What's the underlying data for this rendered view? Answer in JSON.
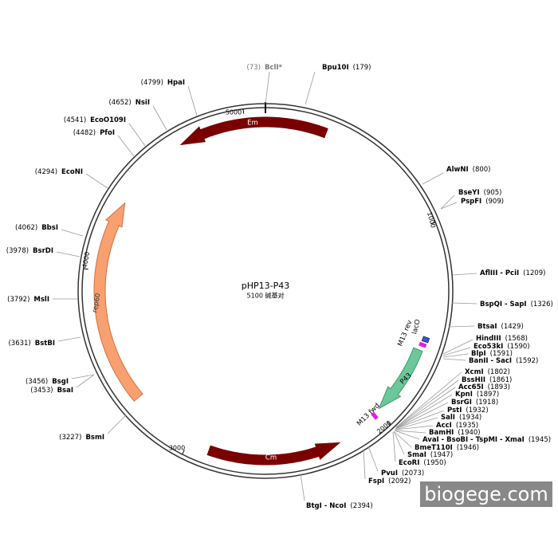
{
  "map": {
    "title": "pHP13-P43",
    "size": "5100 碱基对",
    "ticks": [
      "5000",
      "1000",
      "2000",
      "3000",
      "4000"
    ],
    "features": [
      "Em",
      "Cm",
      "rep60",
      "P43",
      "M13 rev",
      "lacO",
      "M13 fwd"
    ],
    "sites": [
      {
        "pos": "(73)",
        "name": "BclI*"
      },
      {
        "pos": "(179)",
        "name": "Bpu10I"
      },
      {
        "pos": "(800)",
        "name": "AlwNI"
      },
      {
        "pos": "(905)",
        "name": "BseYI"
      },
      {
        "pos": "(909)",
        "name": "PspFI"
      },
      {
        "pos": "(1209)",
        "name": "AflIII - PciI"
      },
      {
        "pos": "(1326)",
        "name": "BspQI - SapI"
      },
      {
        "pos": "(1429)",
        "name": "BtsaI"
      },
      {
        "pos": "(1568)",
        "name": "HindIII"
      },
      {
        "pos": "(1590)",
        "name": "Eco53kI"
      },
      {
        "pos": "(1591)",
        "name": "BlpI"
      },
      {
        "pos": "(1592)",
        "name": "BanII - SacI"
      },
      {
        "pos": "(1802)",
        "name": "XcmI"
      },
      {
        "pos": "(1861)",
        "name": "BssHII"
      },
      {
        "pos": "(1893)",
        "name": "Acc65I"
      },
      {
        "pos": "(1897)",
        "name": "KpnI"
      },
      {
        "pos": "(1918)",
        "name": "BsrGI"
      },
      {
        "pos": "(1932)",
        "name": "PstI"
      },
      {
        "pos": "(1934)",
        "name": "SalI"
      },
      {
        "pos": "(1935)",
        "name": "AccI"
      },
      {
        "pos": "(1940)",
        "name": "BamHI"
      },
      {
        "pos": "(1945)",
        "name": "AvaI - BsoBI - TspMI - XmaI"
      },
      {
        "pos": "(1946)",
        "name": "BmeT110I"
      },
      {
        "pos": "(1947)",
        "name": "SmaI"
      },
      {
        "pos": "(1950)",
        "name": "EcoRI"
      },
      {
        "pos": "(2073)",
        "name": "PvuI"
      },
      {
        "pos": "(2092)",
        "name": "FspI"
      },
      {
        "pos": "(2394)",
        "name": "BtgI - NcoI"
      },
      {
        "pos": "(4799)",
        "name": "HpaI"
      },
      {
        "pos": "(4652)",
        "name": "NsiI"
      },
      {
        "pos": "(4541)",
        "name": "EcoO109I"
      },
      {
        "pos": "(4482)",
        "name": "PfoI"
      },
      {
        "pos": "(4294)",
        "name": "EcoNI"
      },
      {
        "pos": "(4062)",
        "name": "BbsI"
      },
      {
        "pos": "(3978)",
        "name": "BsrDI"
      },
      {
        "pos": "(3792)",
        "name": "MslI"
      },
      {
        "pos": "(3631)",
        "name": "BstBI"
      },
      {
        "pos": "(3456)",
        "name": "BsgI"
      },
      {
        "pos": "(3453)",
        "name": "BsaI"
      },
      {
        "pos": "(3227)",
        "name": "BsmI"
      }
    ],
    "watermark": "biogege.com"
  }
}
